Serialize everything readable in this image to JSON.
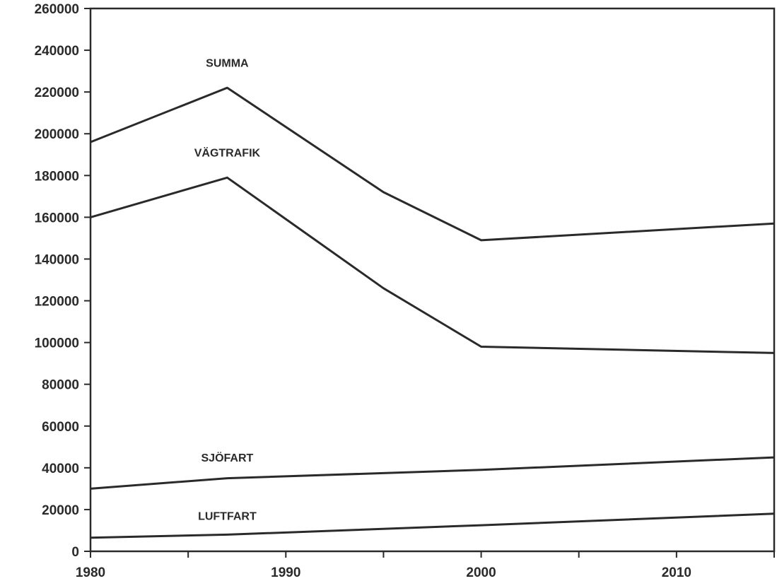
{
  "chart_data": {
    "type": "line",
    "title": "",
    "xlabel": "",
    "ylabel": "",
    "xlim": [
      1980,
      2015
    ],
    "ylim": [
      0,
      260000
    ],
    "grid": false,
    "x_ticks": [
      "1980",
      "1990",
      "2000",
      "2010"
    ],
    "y_ticks": [
      "0",
      "20000",
      "40000",
      "60000",
      "80000",
      "100000",
      "120000",
      "140000",
      "160000",
      "180000",
      "200000",
      "220000",
      "240000",
      "260000"
    ],
    "series": [
      {
        "name": "SUMMA",
        "x": [
          1980,
          1987,
          1995,
          2000,
          2015
        ],
        "values": [
          196000,
          222000,
          172000,
          149000,
          157000
        ]
      },
      {
        "name": "VÄGTRAFIK",
        "x": [
          1980,
          1987,
          1995,
          2000,
          2015
        ],
        "values": [
          160000,
          179000,
          126000,
          98000,
          95000
        ]
      },
      {
        "name": "SJÖFART",
        "x": [
          1980,
          1987,
          2000,
          2015
        ],
        "values": [
          30000,
          35000,
          39000,
          45000
        ]
      },
      {
        "name": "LUFTFART",
        "x": [
          1980,
          1987,
          2000,
          2015
        ],
        "values": [
          6500,
          8000,
          12500,
          18000
        ]
      }
    ],
    "annotations": [
      {
        "series": 0,
        "text": "SUMMA",
        "x": 1987,
        "y": 232000
      },
      {
        "series": 1,
        "text": "VÄGTRAFIK",
        "x": 1987,
        "y": 189000
      },
      {
        "series": 2,
        "text": "SJÖFART",
        "x": 1987,
        "y": 43000
      },
      {
        "series": 3,
        "text": "LUFTFART",
        "x": 1987,
        "y": 15000
      }
    ]
  }
}
